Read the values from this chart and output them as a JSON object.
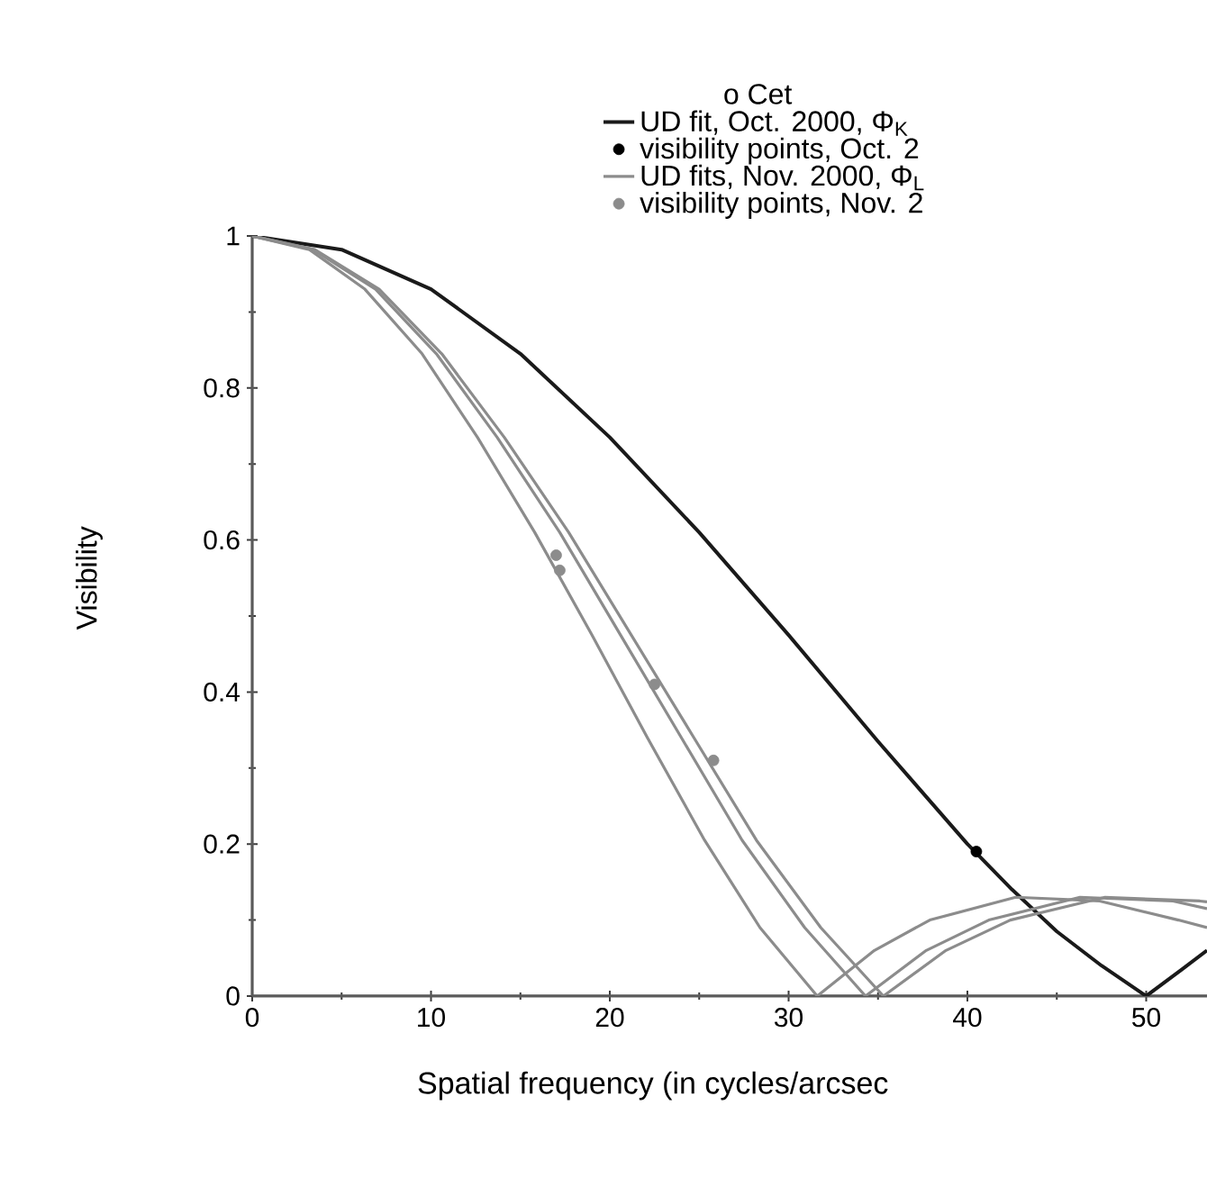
{
  "chart_data": {
    "type": "line",
    "legend_title": "ο Cet",
    "xlabel": "Spatial frequency (in cycles/arcsec",
    "ylabel": "Visibility",
    "xlim": [
      0,
      53.4
    ],
    "ylim": [
      0,
      1
    ],
    "xticks": [
      0,
      10,
      20,
      30,
      40,
      50
    ],
    "yticks": [
      0,
      0.2,
      0.4,
      0.6,
      0.8,
      1
    ],
    "legend": "top right",
    "series": [
      {
        "name": "UD fit, Oct. 2000, Φ$_{K}$",
        "type": "line",
        "color": "#1a1a1a",
        "x": [
          0,
          5,
          10,
          15,
          20,
          25,
          30,
          35,
          40,
          42.5,
          45,
          47.5,
          50,
          52,
          53.4
        ],
        "values": [
          1,
          0.982,
          0.93,
          0.845,
          0.735,
          0.61,
          0.475,
          0.335,
          0.2,
          0.14,
          0.085,
          0.04,
          0,
          0.035,
          0.06
        ]
      },
      {
        "name": "visibility points, Oct. 2",
        "type": "scatter",
        "color": "#000000",
        "x": [
          40.5
        ],
        "values": [
          0.19
        ]
      },
      {
        "name": "UD fits, Nov. 2000, Φ$_{L}$",
        "type": "line",
        "color": "#8c8c8c",
        "x": [
          0,
          3.2,
          6.3,
          9.5,
          12.6,
          15.8,
          19.0,
          22.1,
          25.3,
          28.4,
          31.6,
          34.8,
          37.9,
          42.7,
          47.4,
          51.8,
          53.4
        ],
        "values": [
          1,
          0.982,
          0.93,
          0.845,
          0.735,
          0.61,
          0.475,
          0.34,
          0.205,
          0.09,
          0,
          0.06,
          0.1,
          0.13,
          0.125,
          0.1,
          0.09
        ]
      },
      {
        "type": "line",
        "color": "#8c8c8c",
        "x": [
          0,
          3.4,
          6.9,
          10.3,
          13.7,
          17.2,
          20.6,
          24.0,
          27.4,
          30.9,
          34.3,
          37.7,
          41.2,
          46.3,
          51.5,
          53.4
        ],
        "values": [
          1,
          0.982,
          0.93,
          0.845,
          0.735,
          0.61,
          0.475,
          0.34,
          0.205,
          0.09,
          0,
          0.06,
          0.1,
          0.13,
          0.125,
          0.115
        ]
      },
      {
        "type": "line",
        "color": "#8c8c8c",
        "x": [
          0,
          3.5,
          7.1,
          10.6,
          14.1,
          17.7,
          21.2,
          24.7,
          28.2,
          31.8,
          35.3,
          38.8,
          42.4,
          47.7,
          53.0,
          53.4
        ],
        "values": [
          1,
          0.982,
          0.93,
          0.845,
          0.735,
          0.61,
          0.475,
          0.34,
          0.205,
          0.09,
          0,
          0.06,
          0.1,
          0.13,
          0.125,
          0.124
        ]
      },
      {
        "name": "visibility points, Nov. 2",
        "type": "scatter",
        "color": "#8c8c8c",
        "x": [
          17,
          17.2,
          22.5,
          25.8
        ],
        "values": [
          0.58,
          0.56,
          0.41,
          0.31
        ]
      }
    ]
  }
}
